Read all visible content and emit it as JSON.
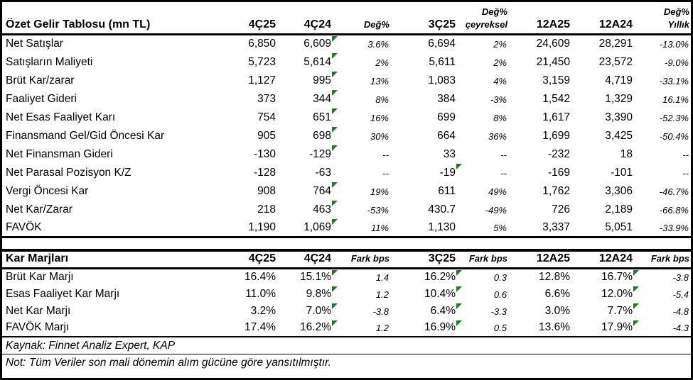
{
  "colors": {
    "flag_green": "#1E7B1E",
    "border": "#000000",
    "background": "#FFFFFF"
  },
  "income_table": {
    "title": "Özet Gelir Tablosu (mn TL)",
    "columns": [
      {
        "label": "4Ç25",
        "italic": false
      },
      {
        "label": "4Ç24",
        "italic": false
      },
      {
        "label": "Değ%",
        "italic": true
      },
      {
        "label": "3Ç25",
        "italic": false
      },
      {
        "label": "Değ%",
        "label2": "çeyreksel",
        "italic": true
      },
      {
        "label": "12A25",
        "italic": false
      },
      {
        "label": "12A24",
        "italic": false
      },
      {
        "label": "Değ%",
        "label2": "Yıllık",
        "italic": true
      }
    ],
    "rows": [
      {
        "label": "Net Satışlar",
        "values": [
          "6,850",
          "6,609",
          "3.6%",
          "6,694",
          "2%",
          "24,609",
          "28,291",
          "-13.0%"
        ],
        "flags": [
          1
        ]
      },
      {
        "label": "Satışların Maliyeti",
        "values": [
          "5,723",
          "5,614",
          "2%",
          "5,611",
          "2%",
          "21,450",
          "23,572",
          "-9.0%"
        ],
        "flags": [
          1
        ]
      },
      {
        "label": "Brüt Kar/zarar",
        "values": [
          "1,127",
          "995",
          "13%",
          "1,083",
          "4%",
          "3,159",
          "4,719",
          "-33.1%"
        ],
        "flags": [
          1
        ]
      },
      {
        "label": "Faaliyet Gideri",
        "values": [
          "373",
          "344",
          "8%",
          "384",
          "-3%",
          "1,542",
          "1,329",
          "16.1%"
        ],
        "flags": [
          1
        ]
      },
      {
        "label": "Net Esas Faaliyet Karı",
        "values": [
          "754",
          "651",
          "16%",
          "699",
          "8%",
          "1,617",
          "3,390",
          "-52.3%"
        ],
        "flags": [
          1
        ]
      },
      {
        "label": "Finansmand Gel/Gid Öncesi Kar",
        "values": [
          "905",
          "698",
          "30%",
          "664",
          "36%",
          "1,699",
          "3,425",
          "-50.4%"
        ],
        "flags": [
          1
        ]
      },
      {
        "label": "Net Finansman Gideri",
        "values": [
          "-130",
          "-129",
          "--",
          "33",
          "--",
          "-232",
          "18",
          "--"
        ],
        "flags": [
          1
        ]
      },
      {
        "label": "Net Parasal Pozisyon K/Z",
        "values": [
          "-128",
          "-63",
          "--",
          "-19",
          "--",
          "-169",
          "-101",
          "--"
        ],
        "flags": [
          3
        ]
      },
      {
        "label": "Vergi Öncesi Kar",
        "values": [
          "908",
          "764",
          "19%",
          "611",
          "49%",
          "1,762",
          "3,306",
          "-46.7%"
        ],
        "flags": [
          1
        ]
      },
      {
        "label": "Net Kar/Zarar",
        "values": [
          "218",
          "463",
          "-53%",
          "430.7",
          "-49%",
          "726",
          "2,189",
          "-66.8%"
        ],
        "flags": [
          1
        ]
      },
      {
        "label": "FAVÖK",
        "values": [
          "1,190",
          "1,069",
          "11%",
          "1,130",
          "5%",
          "3,337",
          "5,051",
          "-33.9%"
        ],
        "flags": [
          1
        ]
      }
    ]
  },
  "margins_table": {
    "title": "Kar Marjları",
    "columns": [
      {
        "label": "4Ç25",
        "italic": false
      },
      {
        "label": "4Ç24",
        "italic": false
      },
      {
        "label": "Fark bps",
        "italic": true
      },
      {
        "label": "3Ç25",
        "italic": false
      },
      {
        "label": "Fark bps",
        "italic": true
      },
      {
        "label": "12A25",
        "italic": false
      },
      {
        "label": "12A24",
        "italic": false
      },
      {
        "label": "Fark bps",
        "italic": true
      }
    ],
    "rows": [
      {
        "label": "Brüt Kar Marjı",
        "values": [
          "16.4%",
          "15.1%",
          "1.4",
          "16.2%",
          "0.3",
          "12.8%",
          "16.7%",
          "-3.8"
        ],
        "flags": [
          1,
          3,
          6
        ]
      },
      {
        "label": "Esas Faaliyet Kar Marjı",
        "values": [
          "11.0%",
          "9.8%",
          "1.2",
          "10.4%",
          "0.6",
          "6.6%",
          "12.0%",
          "-5.4"
        ],
        "flags": [
          1,
          3,
          6
        ]
      },
      {
        "label": "Net Kar Marjı",
        "values": [
          "3.2%",
          "7.0%",
          "-3.8",
          "6.4%",
          "-3.3",
          "3.0%",
          "7.7%",
          "-4.8"
        ],
        "flags": [
          1,
          3,
          6
        ]
      },
      {
        "label": "FAVÖK Marjı",
        "values": [
          "17.4%",
          "16.2%",
          "1.2",
          "16.9%",
          "0.5",
          "13.6%",
          "17.9%",
          "-4.3"
        ],
        "flags": [
          1,
          3,
          6
        ]
      }
    ]
  },
  "footer": {
    "source": "Kaynak: Finnet Analiz Expert, KAP",
    "note": "Not: Tüm Veriler son mali dönemin alım gücüne göre yansıtılmıştır."
  }
}
